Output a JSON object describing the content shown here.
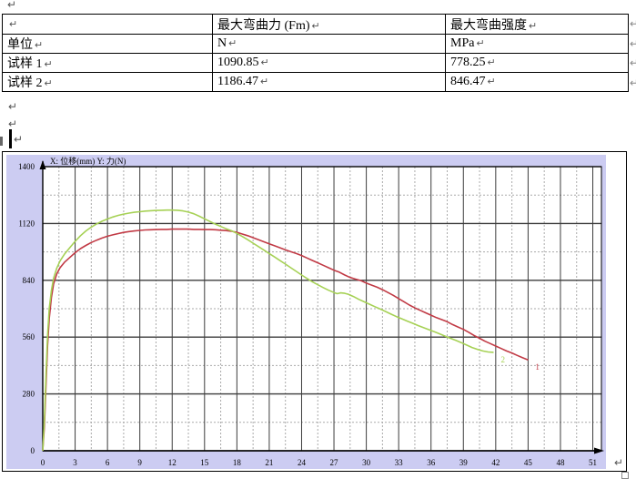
{
  "document": {
    "paragraph_mark": "↵",
    "table": {
      "rows": [
        [
          "",
          "最大弯曲力 (Fm)",
          "最大弯曲强度"
        ],
        [
          "单位",
          "N",
          "MPa"
        ],
        [
          "试样 1",
          "1090.85",
          "778.25"
        ],
        [
          "试样 2",
          "1186.47",
          "846.47"
        ]
      ]
    }
  },
  "chart_data": {
    "type": "line",
    "title": "X: 位移(mm)  Y: 力(N)",
    "xlabel": "位移(mm)",
    "ylabel": "力(N)",
    "xlim": [
      0,
      51.8
    ],
    "ylim": [
      0,
      1400
    ],
    "x_tick_step": 3,
    "x_minor_step": 1.5,
    "y_label_step": 280,
    "y_grid_step": 140,
    "x_ticks": [
      0,
      3,
      6,
      9,
      12,
      15,
      18,
      21,
      24,
      27,
      30,
      33,
      36,
      39,
      42,
      45,
      48,
      51
    ],
    "y_ticks": [
      0,
      280,
      560,
      840,
      1120,
      1400
    ],
    "grid": "on",
    "legend_position": "curve-end-labels",
    "background": "#ccccf2",
    "plot_background": "#ffffff",
    "major_grid_color": "#3c3c3c",
    "minor_grid_color": "#aaaaaa",
    "axis_color": "#000000",
    "series": [
      {
        "name": "试样 1",
        "end_label": "1",
        "color": "#c13a45",
        "max_force": 1090.85,
        "points": [
          [
            0,
            0
          ],
          [
            0.15,
            120
          ],
          [
            0.3,
            330
          ],
          [
            0.45,
            520
          ],
          [
            0.6,
            650
          ],
          [
            0.8,
            755
          ],
          [
            1.0,
            822
          ],
          [
            1.3,
            872
          ],
          [
            1.6,
            902
          ],
          [
            2.0,
            928
          ],
          [
            2.5,
            952
          ],
          [
            3.0,
            976
          ],
          [
            3.5,
            996
          ],
          [
            4.0,
            1012
          ],
          [
            4.5,
            1026
          ],
          [
            5.0,
            1038
          ],
          [
            5.5,
            1048
          ],
          [
            6.0,
            1057
          ],
          [
            6.5,
            1064
          ],
          [
            7.0,
            1070
          ],
          [
            7.5,
            1076
          ],
          [
            8.0,
            1080
          ],
          [
            8.5,
            1083
          ],
          [
            9.0,
            1086
          ],
          [
            9.5,
            1088
          ],
          [
            10,
            1089
          ],
          [
            10.5,
            1090
          ],
          [
            11,
            1091
          ],
          [
            11.5,
            1091
          ],
          [
            12,
            1092
          ],
          [
            12.5,
            1092
          ],
          [
            13,
            1092
          ],
          [
            13.5,
            1092
          ],
          [
            14,
            1091
          ],
          [
            14.5,
            1091
          ],
          [
            15,
            1090
          ],
          [
            15.5,
            1090
          ],
          [
            16,
            1089
          ],
          [
            16.5,
            1087
          ],
          [
            17,
            1085
          ],
          [
            17.5,
            1082
          ],
          [
            18,
            1076
          ],
          [
            18.5,
            1068
          ],
          [
            19,
            1060
          ],
          [
            19.5,
            1050
          ],
          [
            20,
            1040
          ],
          [
            20.5,
            1030
          ],
          [
            21,
            1020
          ],
          [
            21.5,
            1010
          ],
          [
            22,
            1000
          ],
          [
            22.5,
            990
          ],
          [
            23,
            981
          ],
          [
            23.5,
            972
          ],
          [
            24,
            962
          ],
          [
            24.5,
            950
          ],
          [
            25,
            938
          ],
          [
            25.5,
            926
          ],
          [
            26,
            914
          ],
          [
            26.5,
            902
          ],
          [
            27,
            890
          ],
          [
            27.5,
            880
          ],
          [
            28,
            866
          ],
          [
            28.5,
            854
          ],
          [
            29,
            846
          ],
          [
            29.5,
            838
          ],
          [
            30,
            826
          ],
          [
            30.5,
            816
          ],
          [
            31,
            806
          ],
          [
            31.5,
            794
          ],
          [
            32,
            780
          ],
          [
            32.5,
            766
          ],
          [
            33,
            750
          ],
          [
            33.5,
            734
          ],
          [
            34,
            718
          ],
          [
            34.5,
            704
          ],
          [
            35,
            692
          ],
          [
            35.5,
            680
          ],
          [
            36,
            668
          ],
          [
            36.5,
            656
          ],
          [
            37,
            646
          ],
          [
            37.5,
            636
          ],
          [
            38,
            622
          ],
          [
            38.5,
            610
          ],
          [
            39,
            598
          ],
          [
            39.5,
            584
          ],
          [
            40,
            568
          ],
          [
            40.5,
            554
          ],
          [
            41,
            540
          ],
          [
            41.5,
            528
          ],
          [
            42,
            516
          ],
          [
            42.5,
            504
          ],
          [
            43,
            492
          ],
          [
            43.5,
            482
          ],
          [
            44,
            470
          ],
          [
            44.5,
            458
          ],
          [
            45,
            448
          ]
        ]
      },
      {
        "name": "试样 2",
        "end_label": "2",
        "color": "#a6d155",
        "max_force": 1186.47,
        "points": [
          [
            0,
            0
          ],
          [
            0.15,
            150
          ],
          [
            0.3,
            380
          ],
          [
            0.45,
            570
          ],
          [
            0.6,
            700
          ],
          [
            0.8,
            790
          ],
          [
            1.0,
            850
          ],
          [
            1.3,
            900
          ],
          [
            1.6,
            935
          ],
          [
            2.0,
            968
          ],
          [
            2.5,
            1000
          ],
          [
            3.0,
            1032
          ],
          [
            3.5,
            1060
          ],
          [
            4.0,
            1083
          ],
          [
            4.5,
            1102
          ],
          [
            5.0,
            1118
          ],
          [
            5.5,
            1131
          ],
          [
            6.0,
            1142
          ],
          [
            6.5,
            1152
          ],
          [
            7.0,
            1160
          ],
          [
            7.5,
            1166
          ],
          [
            8.0,
            1171
          ],
          [
            8.5,
            1175
          ],
          [
            9.0,
            1178
          ],
          [
            9.5,
            1181
          ],
          [
            10,
            1183
          ],
          [
            10.5,
            1184
          ],
          [
            11,
            1185
          ],
          [
            11.5,
            1186
          ],
          [
            12,
            1186
          ],
          [
            12.5,
            1185
          ],
          [
            13,
            1182
          ],
          [
            13.5,
            1176
          ],
          [
            14,
            1168
          ],
          [
            14.5,
            1156
          ],
          [
            15,
            1143
          ],
          [
            15.5,
            1130
          ],
          [
            16,
            1117
          ],
          [
            16.5,
            1105
          ],
          [
            17,
            1094
          ],
          [
            17.5,
            1084
          ],
          [
            18,
            1071
          ],
          [
            18.5,
            1056
          ],
          [
            19,
            1040
          ],
          [
            19.5,
            1023
          ],
          [
            20,
            1006
          ],
          [
            20.5,
            989
          ],
          [
            21,
            972
          ],
          [
            21.5,
            955
          ],
          [
            22,
            937
          ],
          [
            22.5,
            920
          ],
          [
            23,
            902
          ],
          [
            23.5,
            884
          ],
          [
            24,
            866
          ],
          [
            24.5,
            849
          ],
          [
            25,
            833
          ],
          [
            25.5,
            818
          ],
          [
            26,
            804
          ],
          [
            26.5,
            791
          ],
          [
            27,
            780
          ],
          [
            27.3,
            774
          ],
          [
            27.6,
            778
          ],
          [
            28,
            776
          ],
          [
            28.3,
            772
          ],
          [
            28.8,
            760
          ],
          [
            29.3,
            746
          ],
          [
            29.8,
            734
          ],
          [
            30.3,
            722
          ],
          [
            30.8,
            710
          ],
          [
            31.3,
            698
          ],
          [
            31.8,
            686
          ],
          [
            32.3,
            673
          ],
          [
            32.8,
            661
          ],
          [
            33.3,
            650
          ],
          [
            33.8,
            639
          ],
          [
            34.3,
            628
          ],
          [
            34.8,
            617
          ],
          [
            35.3,
            607
          ],
          [
            35.8,
            597
          ],
          [
            36.3,
            587
          ],
          [
            36.8,
            576
          ],
          [
            37.3,
            565
          ],
          [
            37.8,
            554
          ],
          [
            38.3,
            544
          ],
          [
            38.8,
            533
          ],
          [
            39.3,
            521
          ],
          [
            39.8,
            509
          ],
          [
            40.3,
            500
          ],
          [
            40.8,
            492
          ],
          [
            41.3,
            487
          ],
          [
            41.8,
            485
          ]
        ]
      }
    ]
  }
}
